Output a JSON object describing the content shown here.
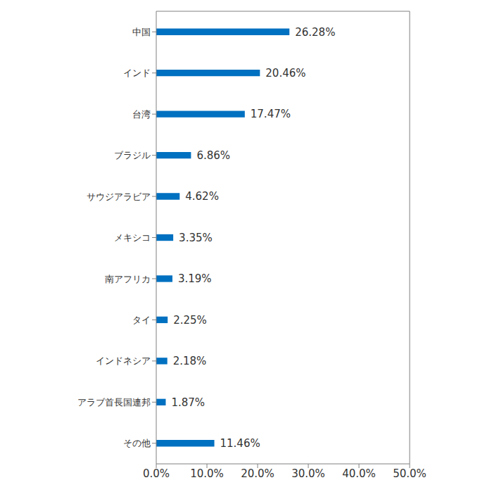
{
  "chart_data": {
    "type": "bar",
    "orientation": "horizontal",
    "categories": [
      "中国",
      "インド",
      "台湾",
      "ブラジル",
      "サウジアラビア",
      "メキシコ",
      "南アフリカ",
      "タイ",
      "インドネシア",
      "アラブ首長国連邦",
      "その他"
    ],
    "values": [
      26.28,
      20.46,
      17.47,
      6.86,
      4.62,
      3.35,
      3.19,
      2.25,
      2.18,
      1.87,
      11.46
    ],
    "value_labels": [
      "26.28%",
      "20.46%",
      "17.47%",
      "6.86%",
      "4.62%",
      "3.35%",
      "3.19%",
      "2.25%",
      "2.18%",
      "1.87%",
      "11.46%"
    ],
    "color": "#0070c0",
    "xlim": [
      0,
      50
    ],
    "xticks": [
      {
        "value": 0,
        "label": "0.0%"
      },
      {
        "value": 10,
        "label": "10.0%"
      },
      {
        "value": 20,
        "label": "20.0%"
      },
      {
        "value": 30,
        "label": "30.0%"
      },
      {
        "value": 40,
        "label": "40.0%"
      },
      {
        "value": 50,
        "label": "50.0%"
      }
    ],
    "grid": false,
    "data_labels": true
  }
}
